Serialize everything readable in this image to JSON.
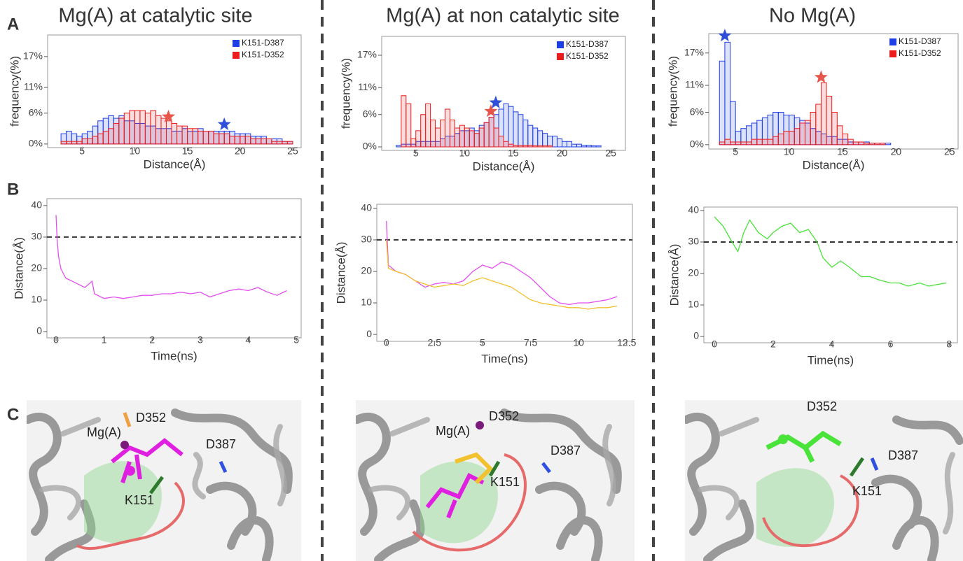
{
  "panel_labels": [
    "A",
    "B",
    "C"
  ],
  "columns": [
    {
      "title": "Mg(A) at catalytic site",
      "structure_labels": [
        "Mg(A)",
        "D352",
        "D387",
        "K151"
      ]
    },
    {
      "title": "Mg(A) at non catalytic site",
      "structure_labels": [
        "Mg(A)",
        "D352",
        "D387",
        "K151"
      ]
    },
    {
      "title": "No Mg(A)",
      "structure_labels": [
        "D352",
        "D387",
        "K151"
      ]
    }
  ],
  "chart_data": [
    {
      "type": "histogram",
      "xlabel": "Distance(Å)",
      "ylabel": "frequency(%)",
      "bins": [
        3,
        3.5,
        4,
        4.5,
        5,
        5.5,
        6,
        6.5,
        7,
        7.5,
        8,
        8.5,
        9,
        9.5,
        10,
        10.5,
        11,
        11.5,
        12,
        12.5,
        13,
        13.5,
        14,
        14.5,
        15,
        15.5,
        16,
        16.5,
        17,
        17.5,
        18,
        18.5,
        19,
        19.5,
        20,
        20.5,
        21,
        21.5,
        22,
        22.5,
        23,
        23.5,
        24,
        24.5,
        25
      ],
      "series": [
        {
          "name": "K151-D387",
          "color": "#1e3ee6",
          "values": [
            2,
            2.5,
            2,
            1.5,
            2,
            2.5,
            3.5,
            4.5,
            5,
            5.5,
            5,
            5.5,
            4.5,
            4.5,
            4,
            4,
            3.5,
            3.5,
            3,
            3,
            3,
            2.5,
            2.5,
            3,
            2.5,
            2.5,
            3,
            2.5,
            2.5,
            2.5,
            2.5,
            2.5,
            2.5,
            2,
            2,
            2,
            1.5,
            1.5,
            1.5,
            1,
            1,
            1,
            0.5,
            0.5
          ]
        },
        {
          "name": "K151-D352",
          "color": "#ec1c1c",
          "values": [
            0.5,
            0.5,
            0.5,
            0.5,
            1,
            1,
            1.5,
            2,
            2.5,
            3,
            4,
            5,
            6,
            6.5,
            6.5,
            6.5,
            6,
            6.5,
            5.5,
            5,
            4.5,
            4,
            3.5,
            3.5,
            3,
            3,
            2.5,
            2.5,
            2.5,
            2,
            2,
            2,
            1.5,
            1.5,
            1.5,
            1.5,
            1,
            1,
            1,
            1,
            0.5,
            0.5,
            0.5,
            0.5
          ]
        }
      ],
      "markers": [
        {
          "x": 13.2,
          "y": 5.3,
          "color": "#e8554a"
        },
        {
          "x": 18.5,
          "y": 3.8,
          "color": "#2f4fd8"
        }
      ],
      "xlim": [
        1.73,
        25.8
      ],
      "ylim": [
        -0.7,
        21.2
      ],
      "xticks": [
        5,
        10,
        15,
        20,
        25
      ],
      "yticks": [
        {
          "value": 0,
          "label": "0%"
        },
        {
          "value": 6,
          "label": "6%"
        },
        {
          "value": 11,
          "label": "11%"
        },
        {
          "value": 17,
          "label": "17%"
        }
      ],
      "legend": "upper right"
    },
    {
      "type": "histogram",
      "xlabel": "Distance(Å)",
      "ylabel": "frequency(%)",
      "bins": [
        3,
        3.5,
        4,
        4.5,
        5,
        5.5,
        6,
        6.5,
        7,
        7.5,
        8,
        8.5,
        9,
        9.5,
        10,
        10.5,
        11,
        11.5,
        12,
        12.5,
        13,
        13.5,
        14,
        14.5,
        15,
        15.5,
        16,
        16.5,
        17,
        17.5,
        18,
        18.5,
        19,
        19.5,
        20,
        20.5,
        21,
        21.5,
        22,
        22.5,
        23,
        23.5,
        24,
        24.5,
        25
      ],
      "series": [
        {
          "name": "K151-D387",
          "color": "#1e3ee6",
          "values": [
            0.3,
            0.5,
            0.5,
            0.5,
            1,
            1,
            1,
            1,
            1,
            1.5,
            2,
            2,
            2.5,
            3,
            3,
            3.5,
            3,
            4,
            4.5,
            5.5,
            6,
            7,
            8,
            7.5,
            6.5,
            6,
            5,
            4,
            3.5,
            3,
            2.5,
            2,
            2,
            1.5,
            1,
            1,
            0.5,
            0.5,
            0.3,
            0.3,
            0.2,
            0.2,
            0,
            0
          ]
        },
        {
          "name": "K151-D352",
          "color": "#ec1c1c",
          "values": [
            0,
            9.5,
            8,
            1.5,
            3,
            6,
            8,
            5,
            3.5,
            5,
            7,
            5,
            3.5,
            4,
            3.5,
            3,
            2.5,
            3.5,
            4.5,
            5.5,
            3.5,
            2,
            1,
            0.5,
            0.3,
            0.3,
            0.3,
            0.3,
            0.2,
            0.2,
            0.2,
            0.2,
            0,
            0,
            0,
            0,
            0,
            0,
            0,
            0,
            0,
            0,
            0,
            0
          ]
        }
      ],
      "markers": [
        {
          "x": 13.2,
          "y": 8.2,
          "color": "#2f4fd8"
        },
        {
          "x": 12.7,
          "y": 6.6,
          "color": "#e8554a"
        }
      ],
      "xlim": [
        1.5,
        26.5
      ],
      "ylim": [
        -0.65,
        20.5
      ],
      "xticks": [
        5,
        10,
        15,
        20,
        25
      ],
      "yticks": [
        {
          "value": 0,
          "label": "0%"
        },
        {
          "value": 6,
          "label": "6%"
        },
        {
          "value": 11,
          "label": "11%"
        },
        {
          "value": 17,
          "label": "17%"
        }
      ],
      "legend": "upper right"
    },
    {
      "type": "histogram",
      "xlabel": "Distance(Å)",
      "ylabel": "frequency(%)",
      "bins": [
        3,
        3.5,
        4,
        4.5,
        5,
        5.5,
        6,
        6.5,
        7,
        7.5,
        8,
        8.5,
        9,
        9.5,
        10,
        10.5,
        11,
        11.5,
        12,
        12.5,
        13,
        13.5,
        14,
        14.5,
        15,
        15.5,
        16,
        16.5,
        17,
        17.5,
        18,
        18.5,
        19,
        19.5,
        20,
        20.5,
        21,
        21.5,
        22,
        22.5,
        23,
        23.5,
        24,
        24.5,
        25
      ],
      "series": [
        {
          "name": "K151-D387",
          "color": "#1e3ee6",
          "values": [
            0,
            15.5,
            19,
            8,
            2.5,
            3,
            3.5,
            4,
            4.5,
            5,
            5.5,
            6,
            6,
            5.5,
            5.5,
            5,
            4.5,
            4,
            3,
            2.5,
            2,
            1.5,
            1.5,
            1,
            1,
            0.5,
            0.5,
            0.5,
            0.5,
            0.3,
            0.3,
            0.3,
            0.3,
            0,
            0,
            0,
            0,
            0,
            0,
            0,
            0,
            0,
            0,
            0
          ]
        },
        {
          "name": "K151-D352",
          "color": "#ec1c1c",
          "values": [
            0,
            0.5,
            1,
            0.5,
            0.5,
            0.5,
            0.5,
            1,
            1,
            1,
            1,
            1.5,
            2,
            2.5,
            2.5,
            3,
            4,
            4.5,
            6,
            7.5,
            11.5,
            9,
            6,
            3.5,
            2,
            1,
            0.5,
            0.5,
            0.3,
            0.3,
            0.3,
            0.3,
            0,
            0,
            0,
            0,
            0,
            0,
            0,
            0,
            0,
            0,
            0,
            0
          ]
        }
      ],
      "markers": [
        {
          "x": 4,
          "y": 20.2,
          "color": "#2f4fd8"
        },
        {
          "x": 13,
          "y": 12.5,
          "color": "#e8554a"
        }
      ],
      "xlim": [
        2.5,
        25.8
      ],
      "ylim": [
        -0.8,
        20.6
      ],
      "xticks": [
        5,
        10,
        15,
        20,
        25
      ],
      "yticks": [
        {
          "value": 0,
          "label": "0%"
        },
        {
          "value": 6,
          "label": "6%"
        },
        {
          "value": 11,
          "label": "11%"
        },
        {
          "value": 17,
          "label": "17%"
        }
      ],
      "legend": "upper right"
    },
    {
      "type": "line",
      "xlabel": "Time(ns)",
      "ylabel": "Distance(Å)",
      "x": [
        0,
        0.02,
        0.05,
        0.1,
        0.2,
        0.4,
        0.6,
        0.75,
        0.8,
        1,
        1.2,
        1.4,
        1.6,
        1.8,
        2,
        2.2,
        2.4,
        2.6,
        2.8,
        3,
        3.2,
        3.4,
        3.6,
        3.8,
        4,
        4.2,
        4.4,
        4.6,
        4.8
      ],
      "series": [
        {
          "color": "#e34fee",
          "values": [
            37,
            30,
            24,
            20,
            17,
            15.5,
            14,
            16,
            12,
            10.5,
            11,
            10.5,
            11,
            11.5,
            11.5,
            12,
            12,
            12.5,
            12,
            12.5,
            11,
            12,
            13,
            13.5,
            13,
            14,
            12.5,
            11.5,
            13
          ]
        }
      ],
      "xlim": [
        -0.19,
        5.1
      ],
      "ylim": [
        -2,
        42.2
      ],
      "xticks": [
        0,
        1,
        2,
        3,
        4,
        5
      ],
      "yticks": [
        0,
        10,
        20,
        30,
        40
      ],
      "reference_line": 30
    },
    {
      "type": "line",
      "xlabel": "Time(ns)",
      "ylabel": "Distance(Å)",
      "x": [
        0,
        0.1,
        0.5,
        1,
        1.5,
        2,
        2.5,
        3,
        3.5,
        4,
        4.5,
        5,
        5.5,
        6,
        6.5,
        7,
        7.5,
        8,
        8.5,
        9,
        9.5,
        10,
        10.5,
        11,
        11.5,
        12
      ],
      "series": [
        {
          "color": "#e34fee",
          "values": [
            36,
            22,
            20,
            19,
            17,
            15,
            16,
            16.5,
            16,
            17,
            20,
            22,
            21,
            23,
            22,
            20,
            18,
            15,
            12,
            10,
            9.5,
            10,
            10,
            10.5,
            11,
            12
          ]
        },
        {
          "color": "#f2c12e",
          "values": [
            30,
            21,
            20,
            19,
            17,
            16,
            15,
            15.5,
            16,
            15.5,
            17,
            18,
            17,
            16,
            15,
            13,
            11,
            10,
            9.5,
            9,
            8.5,
            8.5,
            8,
            8.5,
            8.5,
            9
          ]
        }
      ],
      "xlim": [
        -0.5,
        12.8
      ],
      "ylim": [
        -2.2,
        41.3
      ],
      "xticks": [
        0,
        2.5,
        5,
        7.5,
        10,
        12.5
      ],
      "yticks": [
        0,
        10,
        20,
        30,
        40
      ],
      "reference_line": 30
    },
    {
      "type": "line",
      "xlabel": "Time(ns)",
      "ylabel": "Distance(Å)",
      "x": [
        0,
        0.3,
        0.6,
        0.8,
        1,
        1.2,
        1.5,
        1.8,
        2,
        2.3,
        2.6,
        2.9,
        3.2,
        3.5,
        3.7,
        4,
        4.3,
        4.6,
        5,
        5.3,
        5.6,
        6,
        6.3,
        6.6,
        7,
        7.3,
        7.6,
        7.9
      ],
      "series": [
        {
          "color": "#49e33a",
          "values": [
            38,
            35,
            30,
            27,
            33,
            37,
            33,
            31,
            33,
            35,
            36,
            33,
            34,
            30,
            25,
            22,
            24,
            22,
            19,
            19,
            18,
            17,
            17,
            16,
            17,
            16,
            16.5,
            17
          ]
        }
      ],
      "xlim": [
        -0.36,
        8.28
      ],
      "ylim": [
        -2,
        41.1
      ],
      "xticks": [
        0,
        2,
        4,
        6,
        8
      ],
      "yticks": [
        0,
        10,
        20,
        30,
        40
      ],
      "reference_line": 30
    }
  ]
}
